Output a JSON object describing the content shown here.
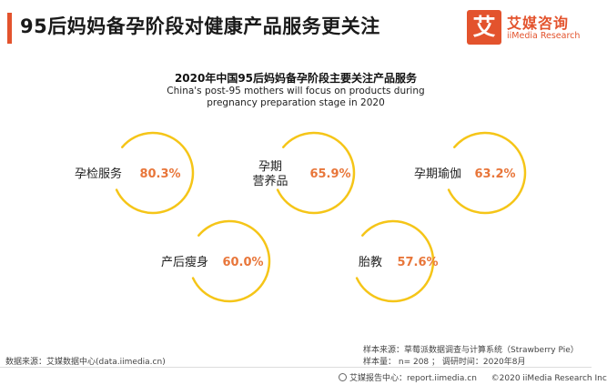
{
  "header": {
    "title": "95后妈妈备孕阶段对健康产品服务更关注",
    "logo_mark": "艾",
    "logo_cn": "艾媒咨询",
    "logo_en": "iiMedia Research"
  },
  "colors": {
    "accent": "#e3532d",
    "ring": "#f5c518",
    "value": "#e8763a"
  },
  "chart_data": {
    "type": "bubble-ring",
    "title": "2020年中国95后妈妈备孕阶段主要关注产品服务",
    "subtitle": "China's post-95 mothers will focus on products during pregnancy preparation stage in 2020",
    "unit": "%",
    "items": [
      {
        "label": "孕检服务",
        "value": 80.3,
        "display": "80.3%"
      },
      {
        "label": "孕期\n营养品",
        "value": 65.9,
        "display": "65.9%"
      },
      {
        "label": "孕期瑜伽",
        "value": 63.2,
        "display": "63.2%"
      },
      {
        "label": "产后瘦身",
        "value": 60.0,
        "display": "60.0%"
      },
      {
        "label": "胎教",
        "value": 57.6,
        "display": "57.6%"
      }
    ]
  },
  "footer": {
    "source_left": "数据来源：艾媒数据中心(data.iimedia.cn)",
    "sample_source": "样本来源：草莓派数据调查与计算系统（Strawberry Pie）",
    "sample_size": "样本量： n= 208 ； 调研时间：2020年8月",
    "report_center": "艾媒报告中心：report.iimedia.cn",
    "copyright": "©2020  iiMedia Research  Inc"
  }
}
